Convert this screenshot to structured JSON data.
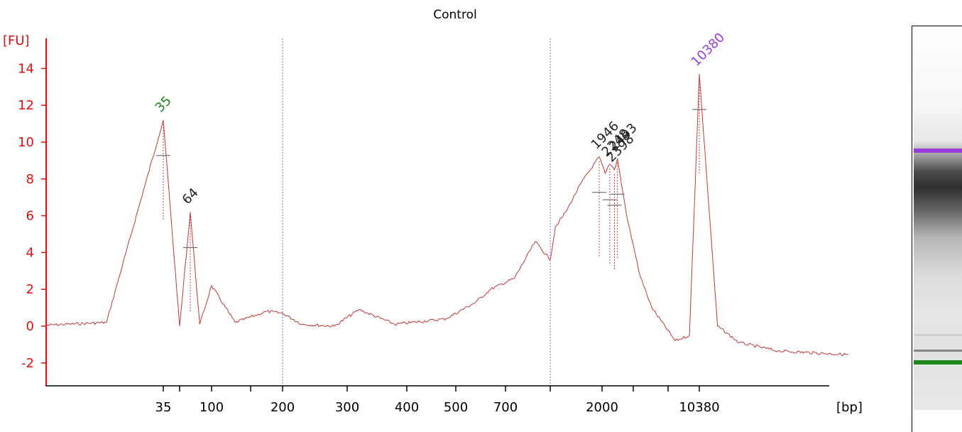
{
  "chart_data": {
    "type": "line",
    "title": "Control",
    "ylabel": "[FU]",
    "xlabel": "[bp]",
    "ylim": [
      -3,
      15
    ],
    "yticks": [
      "-2",
      "0",
      "2",
      "4",
      "6",
      "8",
      "10",
      "12",
      "14"
    ],
    "xticks": [
      "35",
      "100",
      "200",
      "300",
      "400",
      "500",
      "700",
      "2000",
      "10380"
    ],
    "x_scale": "sizing ladder (non-linear)",
    "reference_lines_bp": [
      200,
      1000
    ],
    "colors": {
      "axis": "#dd1111",
      "trace": "#c0393b",
      "lower_marker": "#1a8a1a",
      "upper_marker": "#9b3ddb",
      "reference_line": "#6a6aff",
      "peak_label": "#222222"
    },
    "series": [
      {
        "values": [
          [
            0,
            0.05
          ],
          [
            18,
            0.2
          ],
          [
            35,
            11.2
          ],
          [
            50,
            0.0
          ],
          [
            64,
            6.2
          ],
          [
            80,
            0.1
          ],
          [
            100,
            2.2
          ],
          [
            130,
            0.2
          ],
          [
            175,
            0.8
          ],
          [
            200,
            0.7
          ],
          [
            230,
            0.1
          ],
          [
            280,
            0.0
          ],
          [
            320,
            0.9
          ],
          [
            380,
            0.1
          ],
          [
            480,
            0.4
          ],
          [
            580,
            1.3
          ],
          [
            640,
            2.0
          ],
          [
            760,
            2.6
          ],
          [
            900,
            4.6
          ],
          [
            1000,
            3.6
          ],
          [
            1100,
            5.4
          ],
          [
            1300,
            6.2
          ],
          [
            1600,
            7.8
          ],
          [
            1946,
            9.2
          ],
          [
            2100,
            8.3
          ],
          [
            2248,
            8.8
          ],
          [
            2398,
            8.5
          ],
          [
            2493,
            9.1
          ],
          [
            2800,
            5.9
          ],
          [
            3600,
            2.7
          ],
          [
            4600,
            1.0
          ],
          [
            7000,
            -0.8
          ],
          [
            9000,
            -0.5
          ],
          [
            10380,
            13.7
          ],
          [
            11800,
            0.0
          ],
          [
            13500,
            -0.9
          ],
          [
            16500,
            -1.35
          ],
          [
            22000,
            -1.55
          ]
        ]
      }
    ],
    "peaks": [
      {
        "label": "35",
        "bp": 35,
        "fu": 11.2,
        "kind": "lower_marker"
      },
      {
        "label": "64",
        "bp": 64,
        "fu": 6.2,
        "kind": "peak"
      },
      {
        "label": "1946",
        "bp": 1946,
        "fu": 9.2,
        "kind": "peak"
      },
      {
        "label": "2248",
        "bp": 2248,
        "fu": 8.8,
        "kind": "peak"
      },
      {
        "label": "2398",
        "bp": 2398,
        "fu": 8.5,
        "kind": "peak"
      },
      {
        "label": "2493",
        "bp": 2493,
        "fu": 9.1,
        "kind": "peak"
      },
      {
        "label": "10380",
        "bp": 10380,
        "fu": 13.7,
        "kind": "upper_marker"
      }
    ]
  },
  "gel": {
    "bands": [
      {
        "level": 0.95,
        "color": "#9b3ddb"
      },
      {
        "level": 0.6,
        "color": "#555555"
      },
      {
        "level": 0.15,
        "color": "#888888"
      },
      {
        "level": 0.9,
        "color": "#1a8a1a"
      }
    ]
  }
}
